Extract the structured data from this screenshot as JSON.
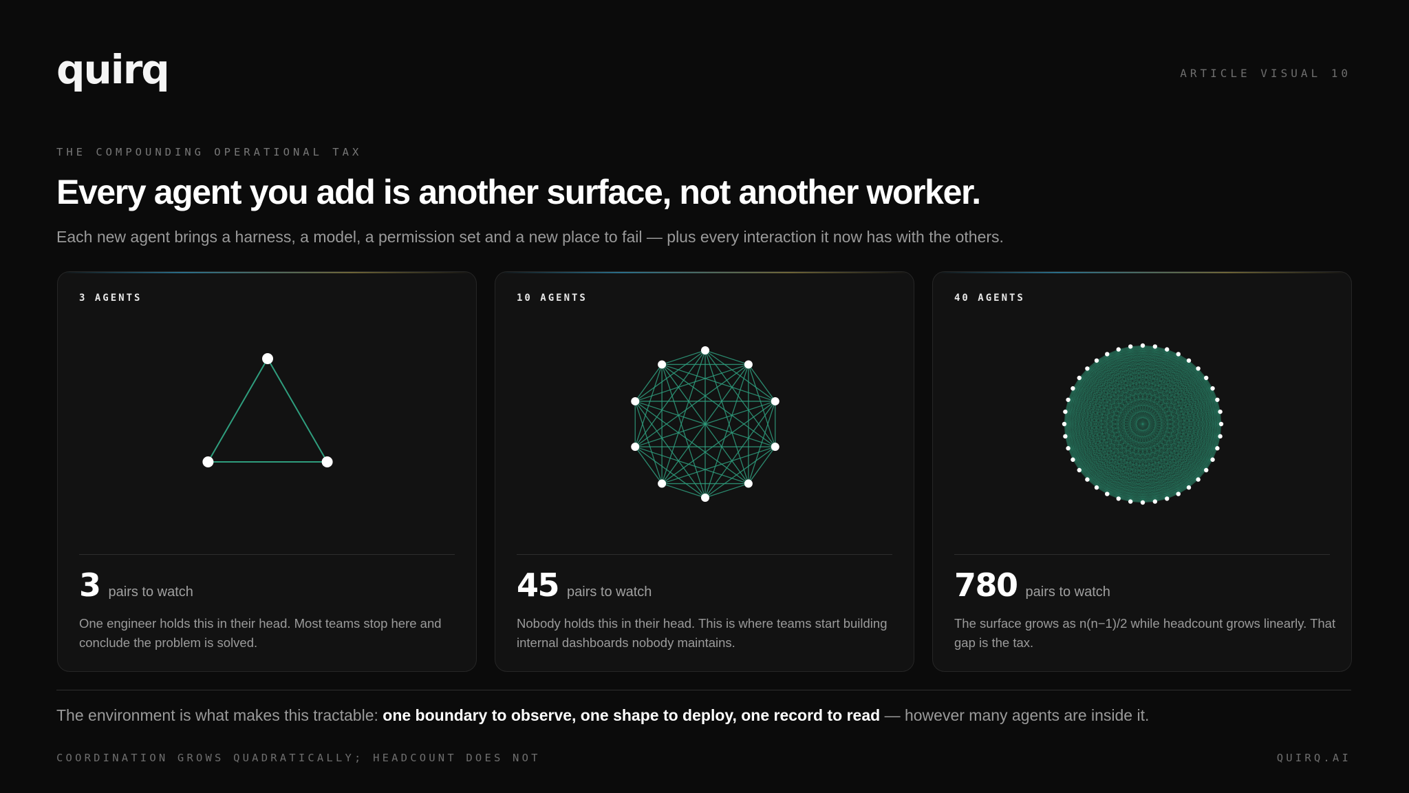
{
  "brand": {
    "logo_text": "quirq",
    "visual_tag": "ARTICLE VISUAL 10"
  },
  "hero": {
    "eyebrow": "THE COMPOUNDING OPERATIONAL TAX",
    "headline": "Every agent you add is another surface, not another worker.",
    "subhead": "Each new agent brings a harness, a model, a permission set and a new place to fail — plus every interaction it now has with the others."
  },
  "colors": {
    "edge": "#2f9e7e",
    "node": "#ffffff",
    "card_bg": "#121212",
    "page_bg": "#0b0b0b"
  },
  "cards": [
    {
      "label": "3 AGENTS",
      "pairs": "3",
      "pairs_label": "pairs to watch",
      "desc": "One engineer holds this in their head. Most teams stop here and conclude the problem is solved."
    },
    {
      "label": "10 AGENTS",
      "pairs": "45",
      "pairs_label": "pairs to watch",
      "desc": "Nobody holds this in their head. This is where teams start building internal dashboards nobody maintains."
    },
    {
      "label": "40 AGENTS",
      "pairs": "780",
      "pairs_label": "pairs to watch",
      "desc": "The surface grows as n(n−1)/2 while headcount grows linearly. That gap is the tax."
    }
  ],
  "chart_data": [
    {
      "type": "network",
      "nodes": 3,
      "edges": 3
    },
    {
      "type": "network",
      "nodes": 10,
      "edges": 45
    },
    {
      "type": "network",
      "nodes": 40,
      "edges": 780
    }
  ],
  "conclusion": {
    "prefix": "The environment is what makes this tractable: ",
    "emphasis": "one boundary to observe, one shape to deploy, one record to read",
    "suffix": " — however many agents are inside it."
  },
  "footer": {
    "left": "COORDINATION GROWS QUADRATICALLY; HEADCOUNT DOES NOT",
    "right": "QUIRQ.AI"
  }
}
